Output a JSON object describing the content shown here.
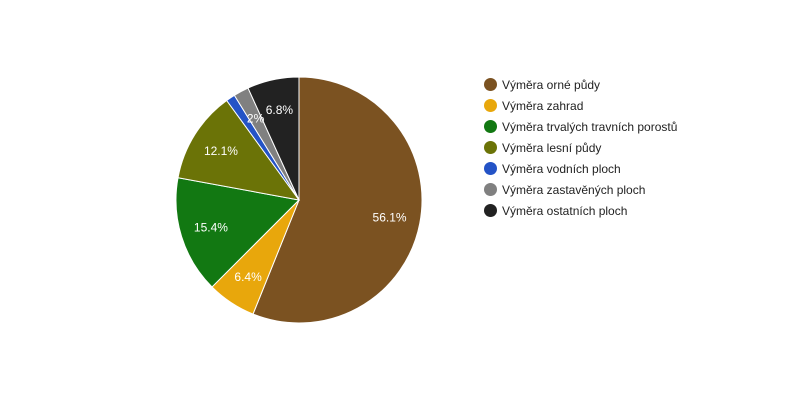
{
  "chart_data": {
    "type": "pie",
    "categories": [
      "Výměra orné půdy",
      "Výměra zahrad",
      "Výměra trvalých travních porostů",
      "Výměra lesní půdy",
      "Výměra vodních ploch",
      "Výměra zastavěných ploch",
      "Výměra ostatních ploch"
    ],
    "values": [
      56.1,
      6.4,
      15.4,
      12.1,
      1.2,
      2.0,
      6.8
    ],
    "data_labels": [
      "56.1%",
      "6.4%",
      "15.4%",
      "12.1%",
      "",
      "2%",
      "6.8%"
    ],
    "colors": [
      "#7b5221",
      "#e8a70c",
      "#127812",
      "#6b7307",
      "#2453c6",
      "#808080",
      "#222222"
    ],
    "legend_position": "right",
    "title": ""
  }
}
